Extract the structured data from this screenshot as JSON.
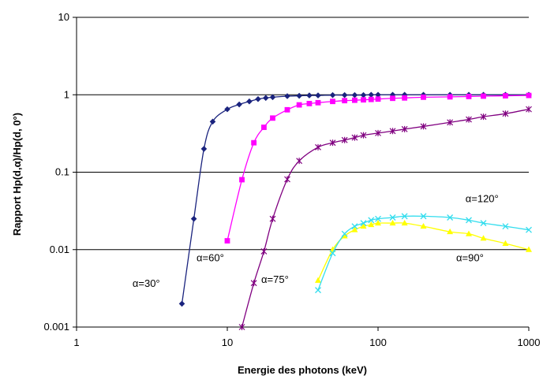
{
  "chart_data": {
    "type": "line",
    "title": "",
    "xlabel": "Energie des photons (keV)",
    "ylabel": "Rapport Hp(d,α)/Hp(d, 0°)",
    "x_scale": "log",
    "y_scale": "log",
    "xlim": [
      1,
      1000
    ],
    "ylim": [
      0.001,
      10
    ],
    "x_ticks": [
      "1",
      "10",
      "100",
      "1000"
    ],
    "y_ticks": [
      "0.001",
      "0.01",
      "0.1",
      "1",
      "10"
    ],
    "grid": "horizontal major lines",
    "legend": "none",
    "series": [
      {
        "label": "α=30°",
        "color": "#1a237e",
        "marker": "diamond",
        "x": [
          5,
          6,
          7,
          8,
          10,
          12,
          14,
          16,
          18,
          20,
          25,
          30,
          35,
          40,
          50,
          60,
          70,
          80,
          90,
          100,
          125,
          150,
          200,
          300,
          400,
          500,
          700,
          1000
        ],
        "y": [
          0.002,
          0.025,
          0.2,
          0.45,
          0.65,
          0.75,
          0.82,
          0.88,
          0.91,
          0.93,
          0.96,
          0.97,
          0.98,
          0.98,
          0.99,
          0.99,
          0.99,
          0.99,
          1.0,
          1.0,
          1.0,
          1.0,
          1.0,
          1.0,
          1.0,
          1.0,
          1.0,
          1.0
        ]
      },
      {
        "label": "α=60°",
        "color": "#ff00ff",
        "marker": "square",
        "x": [
          10,
          12.5,
          15,
          17.5,
          20,
          25,
          30,
          35,
          40,
          50,
          60,
          70,
          80,
          90,
          100,
          125,
          150,
          200,
          300,
          400,
          500,
          700,
          1000
        ],
        "y": [
          0.013,
          0.08,
          0.24,
          0.38,
          0.5,
          0.64,
          0.74,
          0.77,
          0.79,
          0.82,
          0.84,
          0.85,
          0.86,
          0.87,
          0.88,
          0.9,
          0.91,
          0.93,
          0.94,
          0.95,
          0.96,
          0.97,
          0.98
        ]
      },
      {
        "label": "α=75°",
        "color": "#800080",
        "marker": "star",
        "x": [
          12.5,
          15,
          17.5,
          20,
          25,
          30,
          40,
          50,
          60,
          70,
          80,
          100,
          125,
          150,
          200,
          300,
          400,
          500,
          700,
          1000
        ],
        "y": [
          0.001,
          0.0037,
          0.0095,
          0.025,
          0.081,
          0.14,
          0.21,
          0.24,
          0.26,
          0.28,
          0.3,
          0.32,
          0.34,
          0.36,
          0.39,
          0.44,
          0.48,
          0.52,
          0.57,
          0.65
        ]
      },
      {
        "label": "α=90°",
        "color": "#ffff00",
        "marker": "triangle",
        "x": [
          40,
          50,
          60,
          70,
          80,
          90,
          100,
          125,
          150,
          200,
          300,
          400,
          500,
          700,
          1000
        ],
        "y": [
          0.004,
          0.01,
          0.015,
          0.018,
          0.02,
          0.021,
          0.022,
          0.022,
          0.022,
          0.02,
          0.017,
          0.016,
          0.014,
          0.012,
          0.01
        ]
      },
      {
        "label": "α=120°",
        "color": "#33ddee",
        "marker": "x",
        "x": [
          40,
          50,
          60,
          70,
          80,
          90,
          100,
          125,
          150,
          200,
          300,
          400,
          500,
          700,
          1000
        ],
        "y": [
          0.003,
          0.009,
          0.016,
          0.02,
          0.022,
          0.024,
          0.025,
          0.026,
          0.027,
          0.027,
          0.026,
          0.024,
          0.022,
          0.02,
          0.018
        ]
      }
    ],
    "annotations": [
      {
        "text": "α=30°",
        "series": 0
      },
      {
        "text": "α=60°",
        "series": 1
      },
      {
        "text": "α=75°",
        "series": 2
      },
      {
        "text": "α=90°",
        "series": 3
      },
      {
        "text": "α=120°",
        "series": 4
      }
    ]
  }
}
